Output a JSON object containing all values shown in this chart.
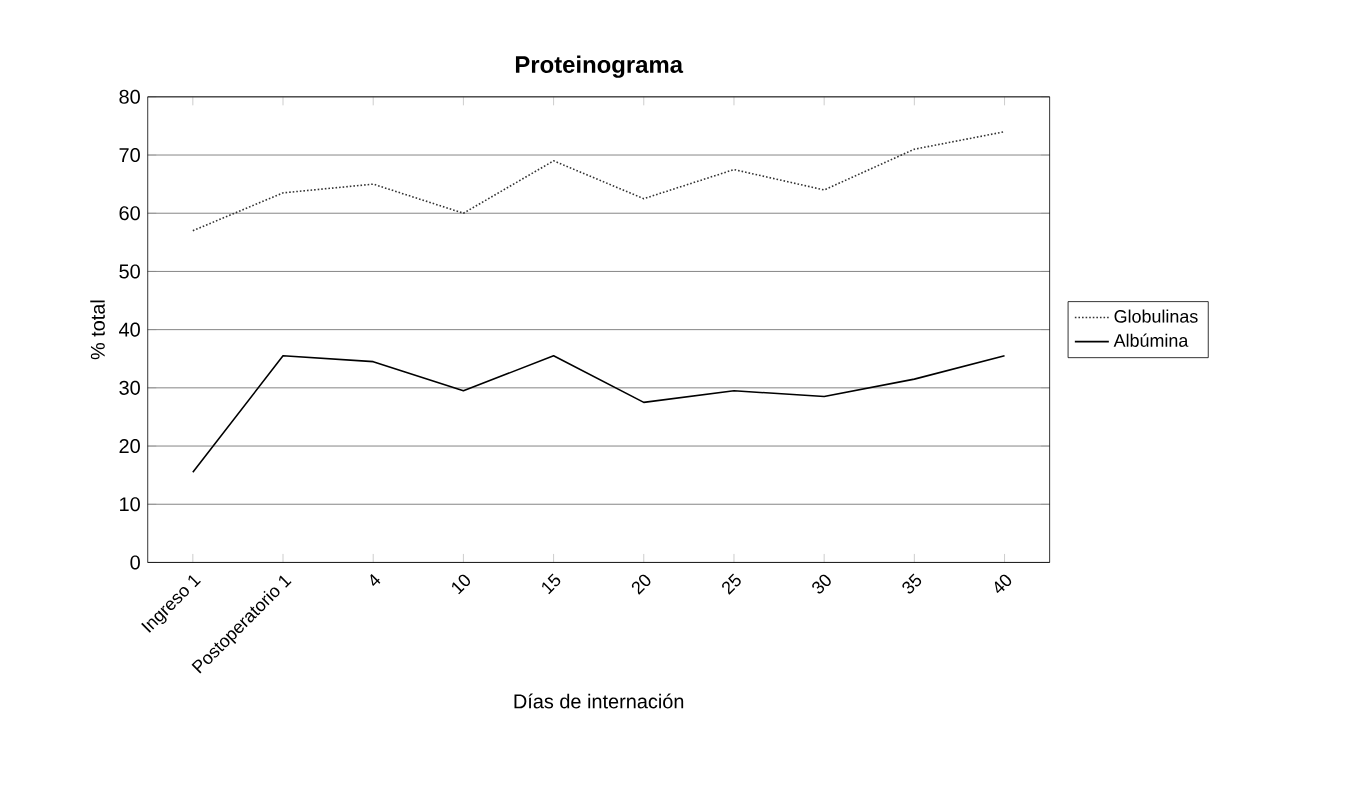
{
  "chart_data": {
    "type": "line",
    "title": "Proteinograma",
    "xlabel": "Días de internación",
    "ylabel": "% total",
    "categories": [
      "Ingreso 1",
      "Postoperatorio 1",
      "4",
      "10",
      "15",
      "20",
      "25",
      "30",
      "35",
      "40"
    ],
    "series": [
      {
        "name": "Globulinas",
        "color": "#333333",
        "line_style": "dotted",
        "values": [
          57,
          63.5,
          65,
          60,
          69,
          62.5,
          67.5,
          64,
          71,
          74
        ]
      },
      {
        "name": "Albúmina",
        "color": "#000000",
        "line_style": "solid",
        "values": [
          15.5,
          35.5,
          34.5,
          29.5,
          35.5,
          27.5,
          29.5,
          28.5,
          31.5,
          35.5
        ]
      }
    ],
    "ylim": [
      0,
      80
    ],
    "yticks": [
      0,
      10,
      20,
      30,
      40,
      50,
      60,
      70,
      80
    ],
    "grid": "y",
    "legend": "right",
    "marker": "none"
  }
}
